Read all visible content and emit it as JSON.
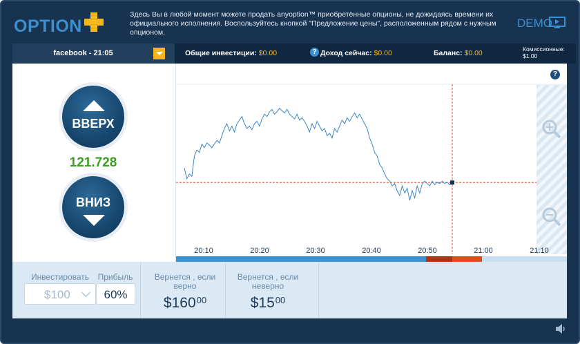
{
  "header": {
    "logo_text": "OPTION",
    "notice": "Здесь Вы в любой момент можете продать anyoption™ приобретённые опционы, не дожидаясь времени их официального исполнения. Воспользуйтесь кнопкой \"Предложение цены\", расположенным рядом с нужным опционом.",
    "demo_label": "DEMO"
  },
  "topbar": {
    "asset": "facebook - 21:05",
    "total_investments_label": "Общие инвестиции:",
    "total_investments_value": "$0.00",
    "income_now_label": "Доход сейчас:",
    "income_now_value": "$0.00",
    "balance_label": "Баланс:",
    "balance_value": "$0.00",
    "commission_label": "Комиссионные:",
    "commission_value": "$1.00"
  },
  "trade": {
    "up_label": "ВВЕРХ",
    "down_label": "ВНИЗ",
    "current_price": "121.728"
  },
  "chart_data": {
    "type": "line",
    "x_ticks": [
      "20:10",
      "20:20",
      "20:30",
      "20:40",
      "20:50",
      "21:00",
      "21:10"
    ],
    "current_level": 121.728,
    "series_color": "#3a86c8",
    "level_line_color": "#e0502a",
    "expiry_time": "20:54",
    "y": [
      121.85,
      121.76,
      121.8,
      121.78,
      121.95,
      122.0,
      121.98,
      122.05,
      122.02,
      122.06,
      122.04,
      122.02,
      122.05,
      122.08,
      122.06,
      122.12,
      122.18,
      122.22,
      122.16,
      122.2,
      122.15,
      122.22,
      122.25,
      122.28,
      122.22,
      122.18,
      122.2,
      122.17,
      122.22,
      122.24,
      122.2,
      122.26,
      122.3,
      122.28,
      122.32,
      122.34,
      122.3,
      122.32,
      122.35,
      122.33,
      122.31,
      122.34,
      122.3,
      122.28,
      122.26,
      122.3,
      122.25,
      122.27,
      122.24,
      122.2,
      122.15,
      122.22,
      122.18,
      122.24,
      122.2,
      122.16,
      122.18,
      122.12,
      122.14,
      122.1,
      122.18,
      122.15,
      122.2,
      122.25,
      122.22,
      122.27,
      122.24,
      122.28,
      122.31,
      122.27,
      122.3,
      122.26,
      122.22,
      122.18,
      122.1,
      122.05,
      121.98,
      121.95,
      121.88,
      121.85,
      121.8,
      121.76,
      121.74,
      121.7,
      121.72,
      121.66,
      121.62,
      121.7,
      121.64,
      121.68,
      121.58,
      121.66,
      121.6,
      121.7,
      121.64,
      121.72,
      121.74,
      121.72,
      121.7,
      121.74,
      121.71,
      121.73,
      121.72,
      121.74,
      121.72,
      121.73,
      121.71,
      121.728
    ]
  },
  "timeline": {
    "colors": [
      "#3a94d3",
      "#bb2d10",
      "#e64a19",
      "#c9dff0"
    ]
  },
  "bottom": {
    "invest_label": "Инвестировать",
    "invest_value": "$100",
    "profit_label": "Прибыль",
    "profit_value": "60%",
    "if_correct_label": "Вернется , если верно",
    "if_correct_value": "$160",
    "if_correct_cents": "00",
    "if_wrong_label": "Вернется , если неверно",
    "if_wrong_value": "$15",
    "if_wrong_cents": "00"
  },
  "icons": [
    "logo-plus-icon",
    "demo-monitor-icon",
    "chevron-down-icon",
    "help-icon",
    "up-arrow-icon",
    "down-arrow-icon",
    "zoom-in-icon",
    "zoom-out-icon",
    "speaker-icon"
  ]
}
